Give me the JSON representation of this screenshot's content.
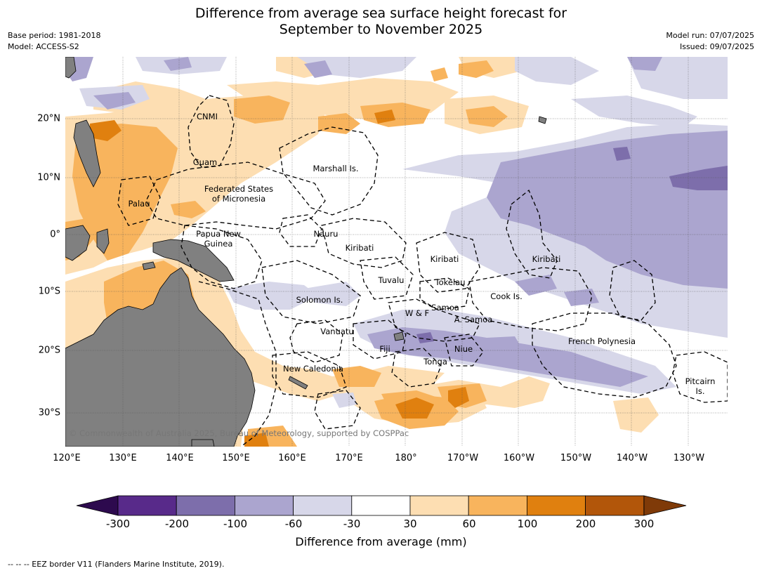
{
  "title_line1": "Difference from average sea surface height forecast for",
  "title_line2": "September to November 2025",
  "meta_left": [
    "Base period: 1981-2018",
    "Model: ACCESS-S2"
  ],
  "meta_right": [
    "Model run: 07/07/2025",
    "Issued: 09/07/2025"
  ],
  "lon_ticks": [
    "120°E",
    "130°E",
    "140°E",
    "150°E",
    "160°E",
    "170°E",
    "180°",
    "170°W",
    "160°W",
    "150°W",
    "140°W",
    "130°W"
  ],
  "lat_ticks": [
    "20°N",
    "10°N",
    "0°",
    "10°S",
    "20°S",
    "30°S"
  ],
  "region_labels": {
    "cnmi": "CNMI",
    "guam": "Guam",
    "marshall": "Marshall Is.",
    "fsm_1": "Federated States",
    "fsm_2": "of Micronesia",
    "palau": "Palau",
    "png_1": "Papua New",
    "png_2": "Guinea",
    "nauru": "Nauru",
    "kiribati_w": "Kiribati",
    "kiribati_c": "Kiribati",
    "kiribati_e": "Kiribati",
    "tuvalu": "Tuvalu",
    "tokelau": "Tokelau",
    "solomon": "Solomon Is.",
    "wf": "W & F",
    "samoa": "Samoa",
    "asamoa": "A. Samoa",
    "cook": "Cook Is.",
    "vanuatu": "Vanuatu",
    "fiji": "Fiji",
    "niue": "Niue",
    "tonga": "Tonga",
    "frpoly": "French Polynesia",
    "newcal": "New Caledonia",
    "pitcairn_1": "Pitcairn",
    "pitcairn_2": "Is."
  },
  "copyright": "© Commonwealth of Australia 2025, Bureau of Meteorology, supported by COSPPac",
  "colorbar": {
    "title": "Difference from average (mm)",
    "labels": [
      "-300",
      "-200",
      "-100",
      "-60",
      "-30",
      "30",
      "60",
      "100",
      "200",
      "300"
    ],
    "colors": [
      "#2d0a4e",
      "#582a8a",
      "#7d6eab",
      "#aba5cf",
      "#d7d7e9",
      "#ffffff",
      "#fddeb2",
      "#f8b45d",
      "#e0800f",
      "#b2560a",
      "#7f3a08"
    ]
  },
  "footer": "--  --  -- EEZ border V11 (Flanders Marine Institute, 2019).",
  "land_color": "#808080"
}
